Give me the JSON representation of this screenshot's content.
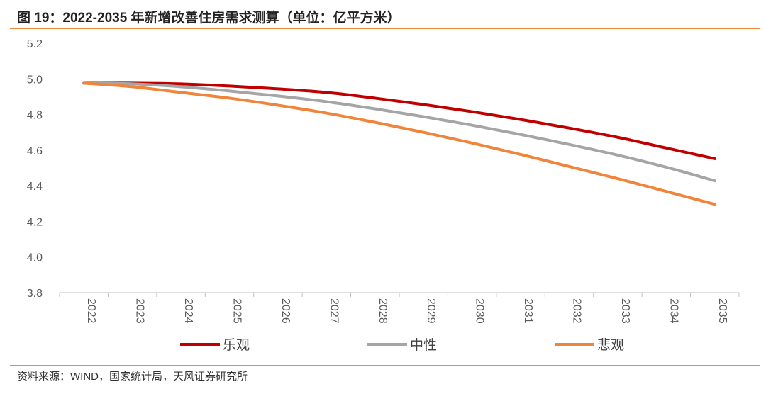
{
  "header": {
    "title": "图 19：2022-2035 年新增改善住房需求测算（单位：亿平方米）"
  },
  "footer": {
    "source": "资料来源：WIND，国家统计局，天风证券研究所"
  },
  "chart_data": {
    "type": "line",
    "title": "2022-2035 年新增改善住房需求测算（单位：亿平方米）",
    "xlabel": "",
    "ylabel": "",
    "ylim": [
      3.8,
      5.2
    ],
    "yticks": [
      "3.8",
      "4.0",
      "4.2",
      "4.4",
      "4.6",
      "4.8",
      "5.0",
      "5.2"
    ],
    "categories": [
      "2022",
      "2023",
      "2024",
      "2025",
      "2026",
      "2027",
      "2028",
      "2029",
      "2030",
      "2031",
      "2032",
      "2033",
      "2034",
      "2035"
    ],
    "legend_position": "bottom",
    "grid": false,
    "series": [
      {
        "name": "乐观",
        "color": "#c00000",
        "values": [
          4.976,
          4.976,
          4.972,
          4.96,
          4.944,
          4.924,
          4.892,
          4.856,
          4.816,
          4.772,
          4.724,
          4.672,
          4.612,
          4.552
        ]
      },
      {
        "name": "中性",
        "color": "#a5a5a5",
        "values": [
          4.976,
          4.972,
          4.956,
          4.932,
          4.904,
          4.872,
          4.832,
          4.788,
          4.74,
          4.688,
          4.632,
          4.572,
          4.504,
          4.428
        ]
      },
      {
        "name": "悲观",
        "color": "#f0843a",
        "values": [
          4.976,
          4.956,
          4.924,
          4.892,
          4.852,
          4.808,
          4.756,
          4.7,
          4.64,
          4.576,
          4.508,
          4.44,
          4.368,
          4.296
        ]
      }
    ]
  }
}
